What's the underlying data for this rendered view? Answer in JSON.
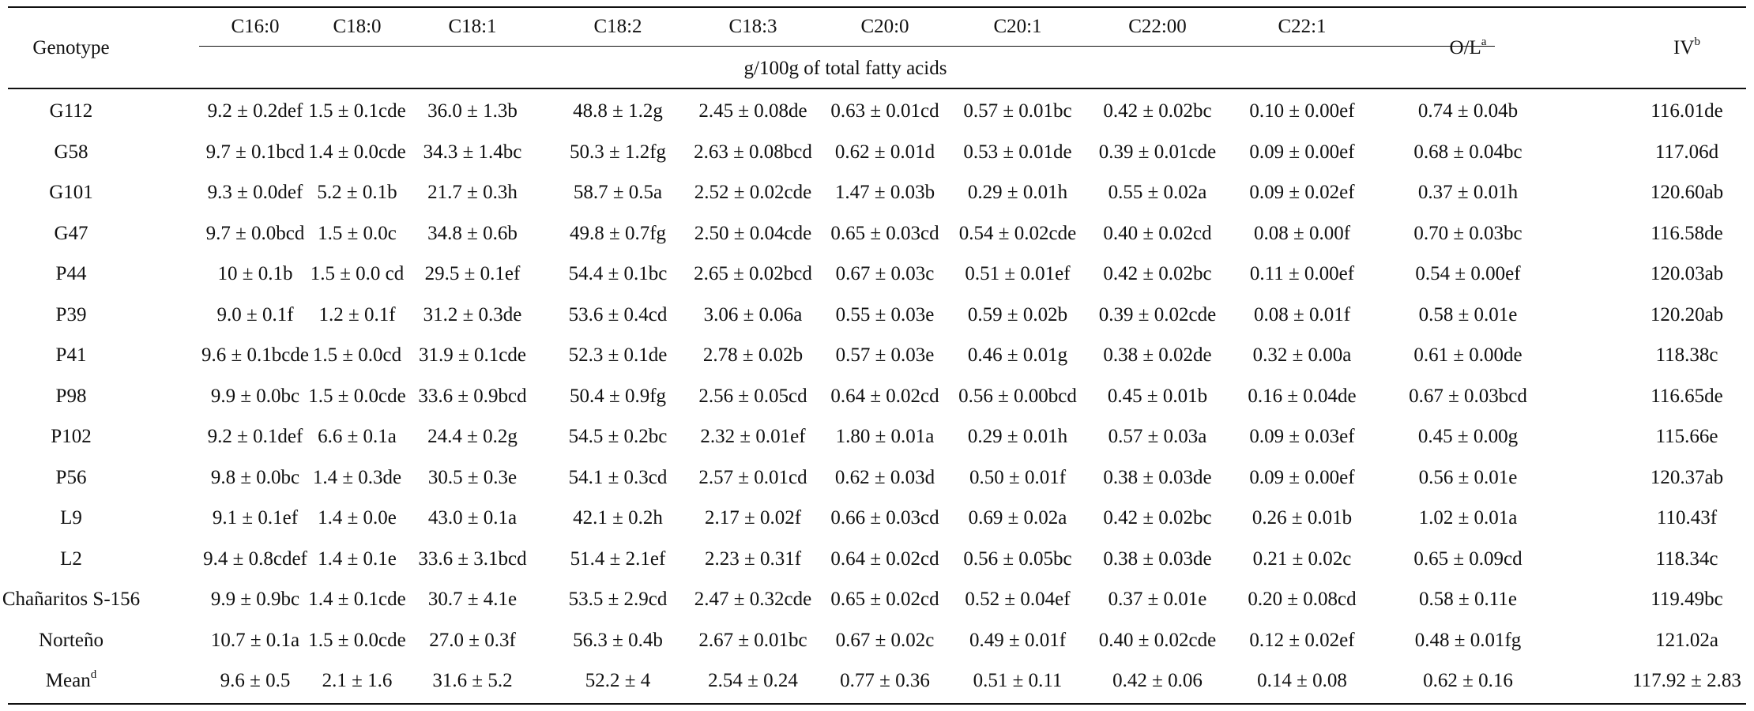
{
  "table": {
    "headers": {
      "genotype": "Genotype",
      "columns": [
        "C16:0",
        "C18:0",
        "C18:1",
        "C18:2",
        "C18:3",
        "C20:0",
        "C20:1",
        "C22:00",
        "C22:1"
      ],
      "subheader": "g/100g of total fatty acids",
      "ol": "O/L",
      "ol_sup": "a",
      "iv": "IV",
      "iv_sup": "b"
    },
    "rows": [
      {
        "genotype": "G112",
        "values": [
          "9.2 ± 0.2def",
          "1.5 ± 0.1cde",
          "36.0 ± 1.3b",
          "48.8 ± 1.2g",
          "2.45 ± 0.08de",
          "0.63 ± 0.01cd",
          "0.57 ± 0.01bc",
          "0.42 ± 0.02bc",
          "0.10 ± 0.00ef",
          "0.74 ± 0.04b",
          "116.01de"
        ]
      },
      {
        "genotype": "G58",
        "values": [
          "9.7 ± 0.1bcd",
          "1.4 ± 0.0cde",
          "34.3 ± 1.4bc",
          "50.3 ± 1.2fg",
          "2.63 ± 0.08bcd",
          "0.62 ± 0.01d",
          "0.53 ± 0.01de",
          "0.39 ± 0.01cde",
          "0.09 ± 0.00ef",
          "0.68 ± 0.04bc",
          "117.06d"
        ]
      },
      {
        "genotype": "G101",
        "values": [
          "9.3 ± 0.0def",
          "5.2 ± 0.1b",
          "21.7 ± 0.3h",
          "58.7 ± 0.5a",
          "2.52 ± 0.02cde",
          "1.47 ± 0.03b",
          "0.29 ± 0.01h",
          "0.55 ± 0.02a",
          "0.09 ± 0.02ef",
          "0.37 ± 0.01h",
          "120.60ab"
        ]
      },
      {
        "genotype": "G47",
        "values": [
          "9.7 ± 0.0bcd",
          "1.5 ± 0.0c",
          "34.8 ± 0.6b",
          "49.8 ± 0.7fg",
          "2.50 ± 0.04cde",
          "0.65 ± 0.03cd",
          "0.54 ± 0.02cde",
          "0.40 ± 0.02cd",
          "0.08 ± 0.00f",
          "0.70 ± 0.03bc",
          "116.58de"
        ]
      },
      {
        "genotype": "P44",
        "values": [
          "10 ± 0.1b",
          "1.5 ± 0.0 cd",
          "29.5 ± 0.1ef",
          "54.4 ± 0.1bc",
          "2.65 ± 0.02bcd",
          "0.67 ± 0.03c",
          "0.51 ± 0.01ef",
          "0.42 ± 0.02bc",
          "0.11 ± 0.00ef",
          "0.54 ± 0.00ef",
          "120.03ab"
        ]
      },
      {
        "genotype": "P39",
        "values": [
          "9.0 ± 0.1f",
          "1.2 ± 0.1f",
          "31.2 ± 0.3de",
          "53.6 ± 0.4cd",
          "3.06 ± 0.06a",
          "0.55 ± 0.03e",
          "0.59 ± 0.02b",
          "0.39 ± 0.02cde",
          "0.08 ± 0.01f",
          "0.58 ± 0.01e",
          "120.20ab"
        ]
      },
      {
        "genotype": "P41",
        "values": [
          "9.6 ± 0.1bcde",
          "1.5 ± 0.0cd",
          "31.9 ± 0.1cde",
          "52.3 ± 0.1de",
          "2.78 ± 0.02b",
          "0.57 ± 0.03e",
          "0.46 ± 0.01g",
          "0.38 ± 0.02de",
          "0.32 ± 0.00a",
          "0.61 ± 0.00de",
          "118.38c"
        ]
      },
      {
        "genotype": "P98",
        "values": [
          "9.9 ± 0.0bc",
          "1.5 ± 0.0cde",
          "33.6 ± 0.9bcd",
          "50.4 ± 0.9fg",
          "2.56 ± 0.05cd",
          "0.64 ± 0.02cd",
          "0.56 ± 0.00bcd",
          "0.45 ± 0.01b",
          "0.16 ± 0.04de",
          "0.67 ± 0.03bcd",
          "116.65de"
        ]
      },
      {
        "genotype": "P102",
        "values": [
          "9.2 ± 0.1def",
          "6.6 ± 0.1a",
          "24.4 ± 0.2g",
          "54.5 ± 0.2bc",
          "2.32 ± 0.01ef",
          "1.80 ± 0.01a",
          "0.29 ± 0.01h",
          "0.57 ± 0.03a",
          "0.09 ± 0.03ef",
          "0.45 ± 0.00g",
          "115.66e"
        ]
      },
      {
        "genotype": "P56",
        "values": [
          "9.8 ± 0.0bc",
          "1.4 ± 0.3de",
          "30.5 ± 0.3e",
          "54.1 ± 0.3cd",
          "2.57 ± 0.01cd",
          "0.62 ± 0.03d",
          "0.50 ± 0.01f",
          "0.38 ± 0.03de",
          "0.09 ± 0.00ef",
          "0.56 ± 0.01e",
          "120.37ab"
        ]
      },
      {
        "genotype": "L9",
        "values": [
          "9.1 ± 0.1ef",
          "1.4 ± 0.0e",
          "43.0 ± 0.1a",
          "42.1 ± 0.2h",
          "2.17 ± 0.02f",
          "0.66 ± 0.03cd",
          "0.69 ± 0.02a",
          "0.42 ± 0.02bc",
          "0.26 ± 0.01b",
          "1.02 ± 0.01a",
          "110.43f"
        ]
      },
      {
        "genotype": "L2",
        "values": [
          "9.4 ± 0.8cdef",
          "1.4 ± 0.1e",
          "33.6 ± 3.1bcd",
          "51.4 ± 2.1ef",
          "2.23 ± 0.31f",
          "0.64 ± 0.02cd",
          "0.56 ± 0.05bc",
          "0.38 ± 0.03de",
          "0.21 ± 0.02c",
          "0.65 ± 0.09cd",
          "118.34c"
        ]
      },
      {
        "genotype": "Chañaritos S-156",
        "values": [
          "9.9 ± 0.9bc",
          "1.4 ± 0.1cde",
          "30.7 ± 4.1e",
          "53.5 ± 2.9cd",
          "2.47 ± 0.32cde",
          "0.65 ± 0.02cd",
          "0.52 ± 0.04ef",
          "0.37 ± 0.01e",
          "0.20 ± 0.08cd",
          "0.58 ± 0.11e",
          "119.49bc"
        ]
      },
      {
        "genotype": "Norteño",
        "values": [
          "10.7 ± 0.1a",
          "1.5 ± 0.0cde",
          "27.0 ± 0.3f",
          "56.3 ± 0.4b",
          "2.67 ± 0.01bc",
          "0.67 ± 0.02c",
          "0.49 ± 0.01f",
          "0.40 ± 0.02cde",
          "0.12 ± 0.02ef",
          "0.48 ± 0.01fg",
          "121.02a"
        ]
      }
    ],
    "mean": {
      "label": "Mean",
      "label_sup": "d",
      "values": [
        "9.6 ± 0.5",
        "2.1 ± 1.6",
        "31.6 ± 5.2",
        "52.2 ± 4",
        "2.54 ± 0.24",
        "0.77 ± 0.36",
        "0.51 ± 0.11",
        "0.42 ± 0.06",
        "0.14 ± 0.08",
        "0.62 ± 0.16",
        "117.92 ± 2.83"
      ]
    }
  }
}
